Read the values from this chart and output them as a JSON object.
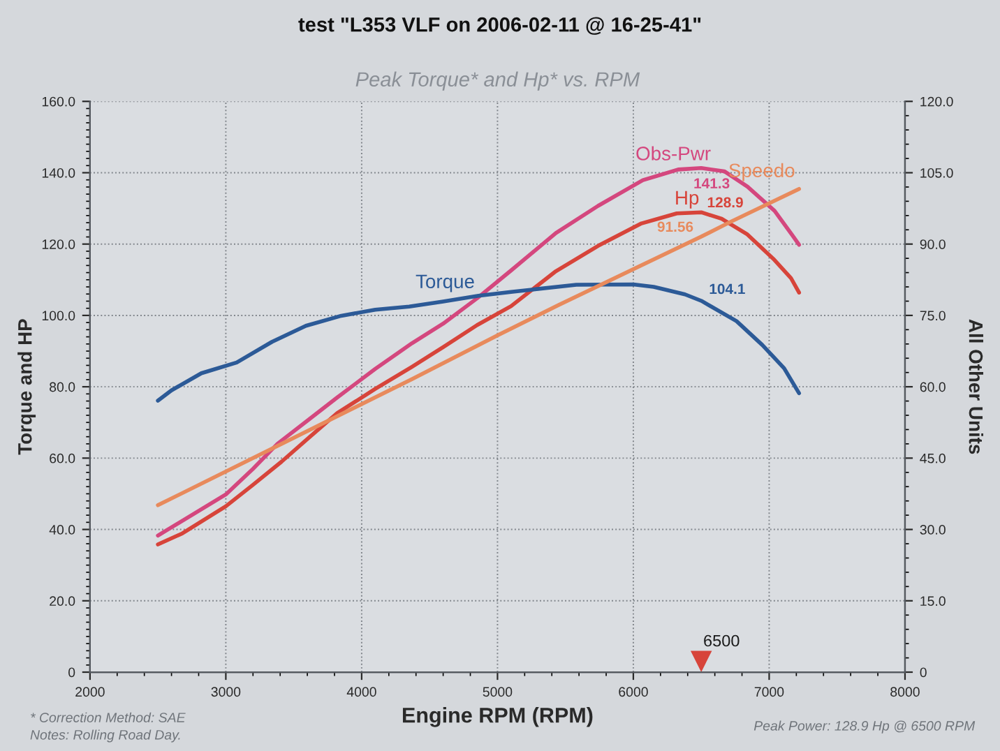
{
  "chart_data": {
    "type": "line",
    "title": "test \"L353 VLF on 2006-02-11 @ 16-25-41\"",
    "subtitle": "Peak Torque* and Hp* vs. RPM",
    "xlabel": "Engine RPM (RPM)",
    "ylabel": "Torque and HP",
    "y2label": "All Other Units",
    "xlim": [
      2000,
      8000
    ],
    "xticks": [
      2000,
      3000,
      4000,
      5000,
      6000,
      7000,
      8000
    ],
    "ylim": [
      0,
      160
    ],
    "yticks": [
      0,
      {
        "value": 20,
        "label": "20.0"
      },
      {
        "value": 40,
        "label": "40.0"
      },
      {
        "value": 60,
        "label": "60.0"
      },
      {
        "value": 80,
        "label": "80.0"
      },
      {
        "value": 100,
        "label": "100.0"
      },
      {
        "value": 120,
        "label": "120.0"
      },
      {
        "value": 140,
        "label": "140.0"
      },
      {
        "value": 160,
        "label": "160.0"
      }
    ],
    "y2lim": [
      0,
      120
    ],
    "y2ticks": [
      0,
      {
        "value": 15,
        "label": "15.0"
      },
      {
        "value": 30,
        "label": "30.0"
      },
      {
        "value": 45,
        "label": "45.0"
      },
      {
        "value": 60,
        "label": "60.0"
      },
      {
        "value": 75,
        "label": "75.0"
      },
      {
        "value": 90,
        "label": "90.0"
      },
      {
        "value": 105,
        "label": "105.0"
      },
      {
        "value": 120,
        "label": "120.0"
      }
    ],
    "grid": true,
    "series": [
      {
        "name": "Obs-Pwr",
        "color": "#d4477e",
        "x": [
          2500,
          3000,
          3200,
          3380,
          3600,
          3820,
          4100,
          4370,
          4600,
          4850,
          5100,
          5430,
          5740,
          6070,
          6330,
          6500,
          6670,
          6840,
          7040,
          7170,
          7220
        ],
        "values": [
          38.3,
          49.8,
          57.0,
          64.0,
          70.5,
          77.0,
          85.0,
          92.2,
          97.7,
          104.8,
          112.6,
          123.1,
          130.7,
          137.9,
          140.9,
          141.3,
          140.4,
          136.1,
          129.3,
          122.5,
          119.8
        ],
        "value_labels": [
          null,
          null,
          null,
          null,
          null,
          null,
          null,
          null,
          null,
          null,
          null,
          null,
          null,
          null,
          null,
          "141.3",
          null,
          null,
          null,
          null,
          null
        ]
      },
      {
        "name": "Hp",
        "color": "#d7443a",
        "x": [
          2500,
          2680,
          3000,
          3200,
          3410,
          3620,
          3820,
          4100,
          4370,
          4600,
          4850,
          5100,
          5430,
          5740,
          6060,
          6320,
          6500,
          6650,
          6840,
          7030,
          7160,
          7220
        ],
        "values": [
          35.8,
          38.9,
          46.5,
          52.5,
          59.0,
          66.0,
          72.6,
          79.4,
          85.6,
          91.1,
          97.3,
          102.6,
          112.4,
          119.5,
          125.8,
          128.6,
          128.9,
          127.1,
          122.7,
          115.9,
          110.5,
          106.4
        ],
        "value_labels": [
          null,
          null,
          null,
          null,
          null,
          null,
          null,
          null,
          null,
          null,
          null,
          null,
          null,
          null,
          null,
          null,
          "128.9",
          null,
          null,
          null,
          null,
          null
        ]
      },
      {
        "name": "Speedo",
        "color": "#e88a5c",
        "axis": "y2",
        "x": [
          2500,
          3410,
          4370,
          5000,
          5450,
          6500,
          6710,
          7220
        ],
        "values": [
          35.1,
          48.0,
          61.6,
          70.8,
          77.2,
          91.56,
          94.6,
          101.6
        ],
        "value_labels": [
          null,
          null,
          null,
          null,
          null,
          "91.56",
          null,
          null
        ]
      },
      {
        "name": "Torque",
        "color": "#2c5a97",
        "x": [
          2500,
          2600,
          2820,
          3080,
          3340,
          3590,
          3850,
          4100,
          4350,
          4600,
          4860,
          5100,
          5580,
          6000,
          6150,
          6380,
          6500,
          6760,
          6950,
          7110,
          7220
        ],
        "values": [
          76.1,
          79.0,
          83.8,
          86.8,
          92.6,
          97.1,
          99.9,
          101.6,
          102.5,
          103.9,
          105.5,
          106.6,
          108.6,
          108.7,
          108.0,
          105.9,
          104.1,
          98.4,
          91.7,
          85.2,
          78.2
        ],
        "value_labels": [
          null,
          null,
          null,
          null,
          null,
          null,
          null,
          null,
          null,
          null,
          null,
          null,
          null,
          null,
          null,
          null,
          "104.1",
          null,
          null,
          null,
          null
        ]
      },
      {
        "type": "scatter",
        "color": "#d7443a",
        "marker": "triangle",
        "x": [
          6500
        ],
        "values": [
          3
        ]
      }
    ],
    "annotations": [
      {
        "text": "6500",
        "x": 6500,
        "y": 3
      },
      "* Correction Method: SAE",
      "Notes: Rolling Road Day.",
      "Peak Power: 128.9 Hp @ 6500 RPM"
    ]
  }
}
